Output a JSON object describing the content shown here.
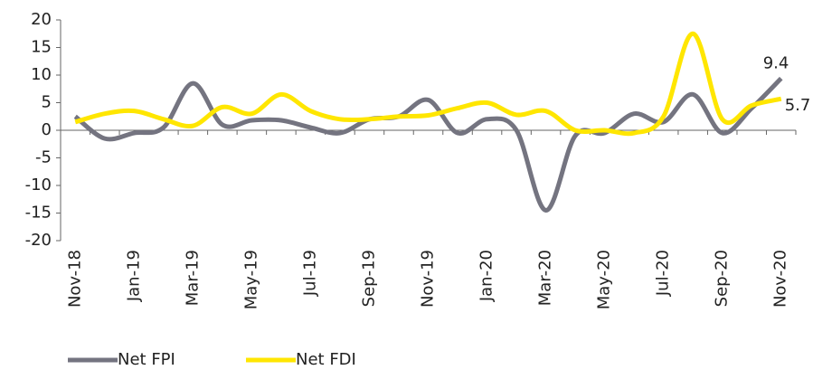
{
  "chart_data": {
    "type": "line",
    "categories": [
      "Nov-18",
      null,
      "Jan-19",
      null,
      "Mar-19",
      null,
      "May-19",
      null,
      "Jul-19",
      null,
      "Sep-19",
      null,
      "Nov-19",
      null,
      "Jan-20",
      null,
      "Mar-20",
      null,
      "May-20",
      null,
      "Jul-20",
      null,
      "Sep-20",
      null,
      "Nov-20"
    ],
    "series": [
      {
        "name": "Net FPI",
        "color": "#747480",
        "values": [
          2.5,
          -1.5,
          -0.5,
          0.5,
          8.5,
          1,
          1.8,
          1.8,
          0.5,
          -0.5,
          2,
          2.5,
          5.5,
          -0.5,
          2,
          0,
          -14.5,
          -1,
          -0.5,
          3,
          1.5,
          6.5,
          -0.5,
          4,
          9.4
        ]
      },
      {
        "name": "Net FDI",
        "color": "#ffe600",
        "values": [
          1.5,
          3,
          3.5,
          2,
          0.8,
          4.2,
          3,
          6.5,
          3.5,
          2,
          2,
          2.5,
          2.7,
          4,
          5,
          2.8,
          3.5,
          0,
          0,
          -0.5,
          2.5,
          17.5,
          2,
          4.5,
          5.7
        ]
      }
    ],
    "ylim": [
      -20,
      20
    ],
    "yticks": [
      20,
      15,
      10,
      5,
      0,
      -5,
      -10,
      -15,
      -20
    ],
    "grid": false
  }
}
